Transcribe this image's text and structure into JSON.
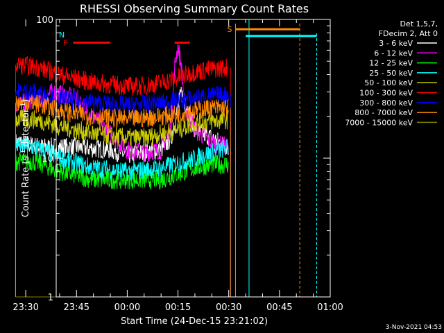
{
  "chart_data": {
    "type": "line",
    "title": "RHESSI Observing Summary Count Rates",
    "xlabel": "Start Time (24-Dec-15 23:21:02)",
    "ylabel_main": "Count Rate (s",
    "ylabel_sup": "-1",
    "ylabel_mid": " detector",
    "ylabel_end": ")",
    "y_scale": "log",
    "ylim": [
      1,
      100
    ],
    "xlim_minutes": [
      -21,
      60
    ],
    "x_ticks": [
      {
        "t": -30,
        "label": "23:30"
      },
      {
        "t": -15,
        "label": "23:45"
      },
      {
        "t": 0,
        "label": "00:00"
      },
      {
        "t": 15,
        "label": "00:15"
      },
      {
        "t": 30,
        "label": "00:30"
      },
      {
        "t": 45,
        "label": "00:45"
      },
      {
        "t": 60,
        "label": "01:00"
      }
    ],
    "y_ticks": [
      {
        "v": 1,
        "label": "1"
      },
      {
        "v": 10,
        "label": "10"
      },
      {
        "v": 100,
        "label": "100"
      }
    ],
    "legend_header": [
      "Det 1,5,7,",
      "FDecim 2, Att 0"
    ],
    "legend_placement": "right",
    "series": [
      {
        "name": "3 - 6 keV",
        "color": "#ffffff",
        "x": [
          -33,
          -25,
          -15,
          -5,
          0,
          5,
          10,
          13,
          16,
          20,
          25,
          30
        ],
        "values": [
          13,
          12,
          12,
          11.5,
          10.5,
          11,
          11.5,
          14,
          30,
          16,
          14,
          12
        ]
      },
      {
        "name": "6 - 12 keV",
        "color": "#ff00ff",
        "x": [
          -33,
          -28,
          -25,
          -22,
          -15,
          -10,
          -5,
          0,
          5,
          10,
          13,
          14,
          15,
          16,
          17,
          20,
          25,
          30
        ],
        "values": [
          24,
          26,
          27,
          30,
          27,
          20,
          15,
          11.5,
          11,
          11.5,
          17,
          45,
          65,
          45,
          24,
          16,
          13,
          12
        ]
      },
      {
        "name": "12 - 25 keV",
        "color": "#00ff00",
        "x": [
          -33,
          -28,
          -25,
          -20,
          -10,
          0,
          10,
          20,
          25,
          30
        ],
        "values": [
          9.5,
          9.5,
          9,
          8,
          7,
          7,
          7,
          8.5,
          9,
          9
        ]
      },
      {
        "name": "25 - 50 keV",
        "color": "#00ffff",
        "x": [
          -33,
          -28,
          -25,
          -20,
          -10,
          0,
          10,
          20,
          25,
          30
        ],
        "values": [
          12.5,
          12,
          11.5,
          10,
          8.5,
          8,
          8.5,
          10,
          11,
          12
        ]
      },
      {
        "name": "50 - 100 keV",
        "color": "#cccc00",
        "x": [
          -33,
          -28,
          -25,
          -20,
          -10,
          0,
          5,
          10,
          15,
          20,
          25,
          30
        ],
        "values": [
          19,
          19,
          18.5,
          17,
          15,
          14,
          14,
          15,
          16,
          18,
          18.5,
          19
        ]
      },
      {
        "name": "100 - 300 keV",
        "color": "#ff0000",
        "x": [
          -33,
          -28,
          -25,
          -20,
          -10,
          -5,
          0,
          5,
          10,
          15,
          20,
          25,
          30
        ],
        "values": [
          47,
          46,
          44,
          40,
          35,
          34,
          33,
          33,
          35,
          38,
          42,
          44,
          45
        ]
      },
      {
        "name": "300 - 800 keV",
        "color": "#0000ff",
        "x": [
          -33,
          -28,
          -25,
          -20,
          -10,
          0,
          10,
          20,
          25,
          30
        ],
        "values": [
          30,
          30,
          29,
          27,
          25,
          24,
          25,
          27,
          28,
          29
        ]
      },
      {
        "name": "800 - 7000 keV",
        "color": "#ff8800",
        "x": [
          -33,
          -28,
          -25,
          -20,
          -10,
          0,
          10,
          20,
          25,
          30
        ],
        "values": [
          25,
          25,
          24,
          22,
          20,
          19,
          20,
          22,
          23,
          23
        ]
      },
      {
        "name": "7000 - 15000 keV",
        "color": "#808000",
        "x": [
          -33,
          -25,
          -15,
          0,
          15,
          30
        ],
        "values": [
          1,
          1,
          1,
          1,
          1,
          1
        ]
      }
    ],
    "annotations": {
      "flare_label": "F",
      "saa_label": "S",
      "night_label": "N",
      "flare_bars": [
        {
          "x0": -16,
          "x1": -5
        },
        {
          "x0": 14,
          "x1": 18.5
        }
      ],
      "flare_level": 68,
      "night_bars": [
        {
          "x0": -50,
          "x1": -27
        },
        {
          "x0": 35,
          "x1": 56
        }
      ],
      "night_level": 76,
      "saa_bar": {
        "x0": 32,
        "x1": 51
      },
      "saa_level": 85,
      "night_lines_solid": [
        -50,
        -33,
        36
      ],
      "night_lines_dashed": [
        -27,
        56
      ],
      "saa_lines_solid": [
        32
      ],
      "saa_lines_dashed": [
        51
      ],
      "data_edges": [
        -33,
        30.5
      ]
    },
    "timestamp": "3-Nov-2021 04:53"
  }
}
